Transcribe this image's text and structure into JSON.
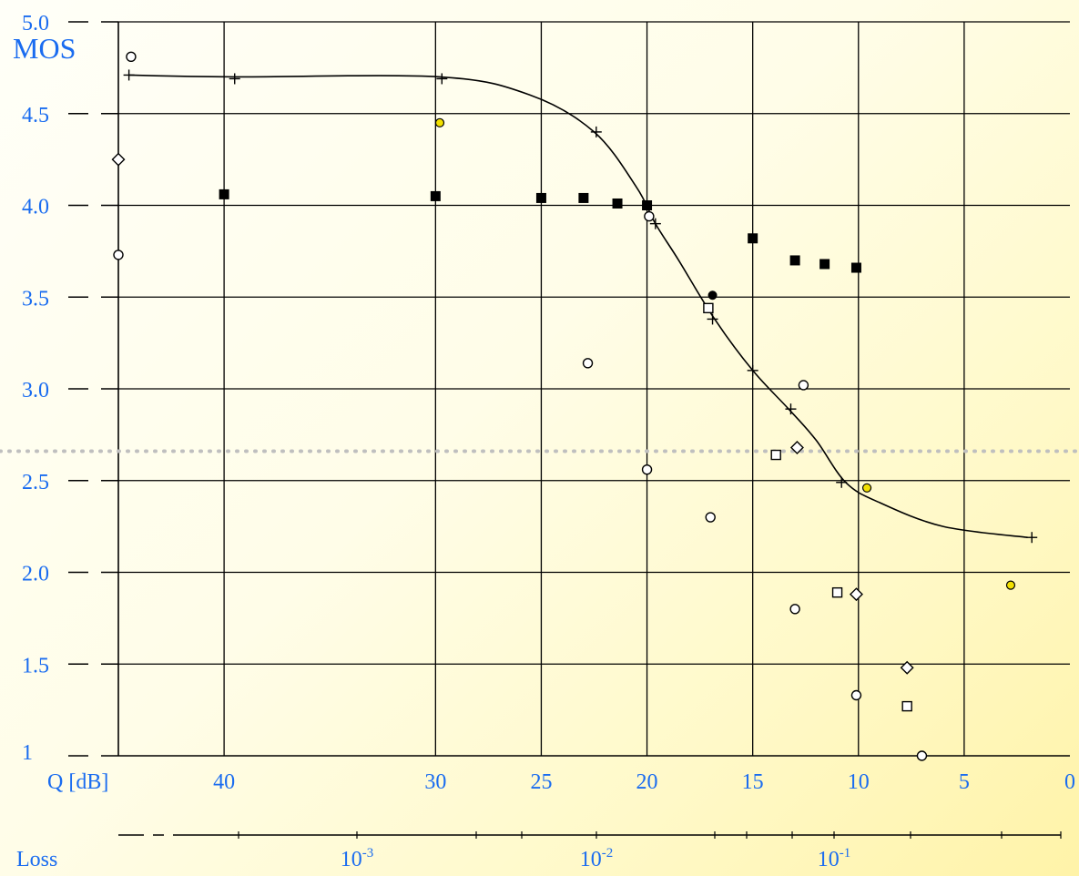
{
  "chart_data": {
    "type": "scatter",
    "ylabel": "MOS",
    "xlabel": "Q [dB]",
    "loss_axis_label": "Loss",
    "y_ticks": [
      "1",
      "1.5",
      "2.0",
      "2.5",
      "3.0",
      "3.5",
      "4.0",
      "4.5",
      "5.0"
    ],
    "y_tick_values": [
      1,
      1.5,
      2,
      2.5,
      3,
      3.5,
      4,
      4.5,
      5
    ],
    "x_ticks": [
      "40",
      "30",
      "25",
      "20",
      "15",
      "10",
      "5",
      "0"
    ],
    "loss_ticks": [
      {
        "base": "10",
        "exp": "-3"
      },
      {
        "base": "10",
        "exp": "-2"
      },
      {
        "base": "10",
        "exp": "-1"
      }
    ],
    "ylim": [
      1,
      5
    ],
    "threshold_mos": 2.66,
    "grid": true,
    "colors": {
      "text": "#1a6cf0",
      "threshold": "#bfbfbf",
      "yellow_marker": "#f2e000"
    },
    "curve": {
      "marker": "plus",
      "points": [
        [
          44.5,
          4.71
        ],
        [
          39.5,
          4.7
        ],
        [
          29.8,
          4.7
        ],
        [
          25.5,
          4.6
        ],
        [
          22.5,
          4.4
        ],
        [
          20.5,
          4.1
        ],
        [
          19.6,
          3.9
        ],
        [
          18.5,
          3.7
        ],
        [
          16.8,
          3.38
        ],
        [
          15,
          3.1
        ],
        [
          13.3,
          2.89
        ],
        [
          12,
          2.72
        ],
        [
          10.6,
          2.49
        ],
        [
          9,
          2.38
        ],
        [
          6,
          2.25
        ],
        [
          2,
          2.19
        ]
      ]
    },
    "series": [
      {
        "marker": "plus",
        "points": [
          [
            44.5,
            4.71
          ],
          [
            39.5,
            4.69
          ],
          [
            29.7,
            4.69
          ],
          [
            22.4,
            4.4
          ],
          [
            19.6,
            3.9
          ],
          [
            16.9,
            3.38
          ],
          [
            15,
            3.1
          ],
          [
            13.2,
            2.89
          ],
          [
            10.8,
            2.49
          ],
          [
            1.8,
            2.19
          ]
        ]
      },
      {
        "marker": "filled-square",
        "points": [
          [
            40,
            4.06
          ],
          [
            30,
            4.05
          ],
          [
            25,
            4.04
          ],
          [
            23,
            4.04
          ],
          [
            21.4,
            4.01
          ],
          [
            20,
            4.0
          ],
          [
            15,
            3.82
          ],
          [
            13,
            3.7
          ],
          [
            11.6,
            3.68
          ],
          [
            10.1,
            3.66
          ]
        ]
      },
      {
        "marker": "open-circle",
        "points": [
          [
            44.4,
            4.81
          ],
          [
            45,
            3.73
          ],
          [
            22.8,
            3.14
          ],
          [
            19.9,
            3.94
          ],
          [
            20,
            2.56
          ],
          [
            17,
            2.3
          ],
          [
            12.6,
            3.02
          ],
          [
            13,
            1.8
          ],
          [
            10.1,
            1.33
          ],
          [
            7,
            1.0
          ]
        ]
      },
      {
        "marker": "open-diamond",
        "points": [
          [
            45,
            4.25
          ],
          [
            12.9,
            2.68
          ],
          [
            10.1,
            1.88
          ],
          [
            7.7,
            1.48
          ]
        ]
      },
      {
        "marker": "open-square",
        "points": [
          [
            17.1,
            3.44
          ],
          [
            13.9,
            2.64
          ],
          [
            11,
            1.89
          ],
          [
            7.7,
            1.27
          ]
        ]
      },
      {
        "marker": "yellow-dot",
        "points": [
          [
            29.8,
            4.45
          ],
          [
            9.6,
            2.46
          ],
          [
            2.8,
            1.93
          ]
        ]
      },
      {
        "marker": "filled-circle",
        "points": [
          [
            16.9,
            3.51
          ]
        ]
      }
    ]
  }
}
